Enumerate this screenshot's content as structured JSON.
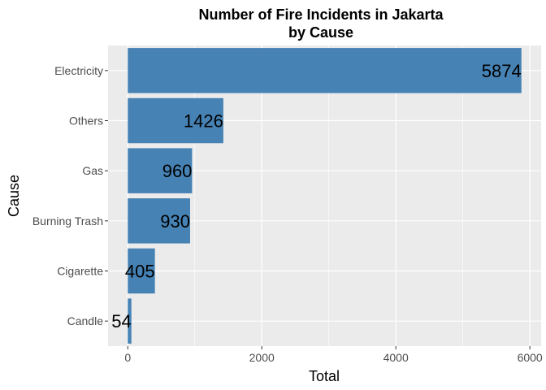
{
  "chart_data": {
    "type": "bar",
    "orientation": "horizontal",
    "title_line1": "Number of Fire Incidents in Jakarta",
    "title_line2": "by Cause",
    "xlabel": "Total",
    "ylabel": "Cause",
    "categories": [
      "Electricity",
      "Others",
      "Gas",
      "Burning Trash",
      "Cigarette",
      "Candle"
    ],
    "values": [
      5874,
      1426,
      960,
      930,
      405,
      54
    ],
    "value_labels": [
      "5874",
      "1426",
      "960",
      "930",
      "405",
      "54"
    ],
    "xticks": [
      0,
      2000,
      4000,
      6000
    ],
    "xtick_labels": [
      "0",
      "2000",
      "4000",
      "6000"
    ],
    "xlim": [
      -294,
      6168
    ],
    "grid": true,
    "bar_color": "#4682B4",
    "panel_color": "#EBEBEB",
    "grid_color": "#FFFFFF"
  }
}
